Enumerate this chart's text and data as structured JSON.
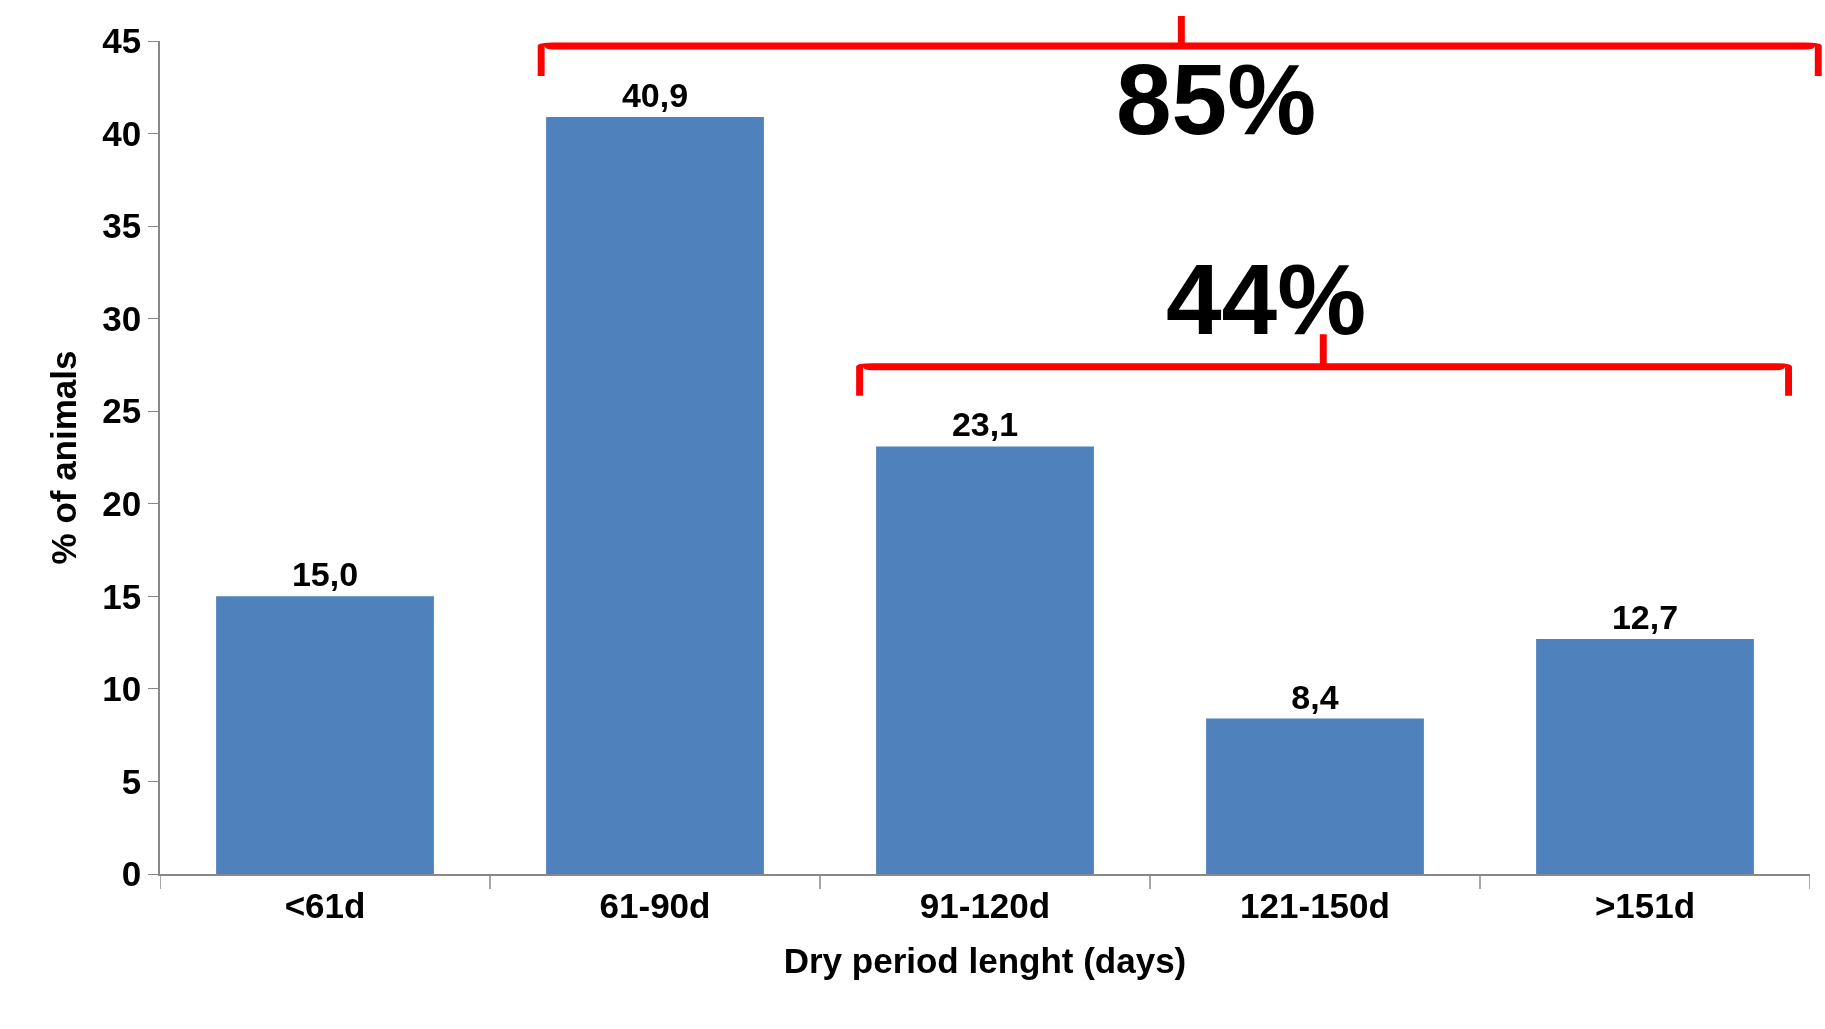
{
  "chart_data": {
    "type": "bar",
    "xlabel": "Dry period lenght (days)",
    "ylabel": "% of animals",
    "categories": [
      "<61d",
      "61-90d",
      "91-120d",
      "121-150d",
      ">151d"
    ],
    "values": [
      15.0,
      40.9,
      23.1,
      8.4,
      12.7
    ],
    "value_labels": [
      "15,0",
      "40,9",
      "23,1",
      "8,4",
      "12,7"
    ],
    "color": "#4f81bd",
    "ylim": [
      0,
      45
    ],
    "yticks": [
      0,
      5,
      10,
      15,
      20,
      25,
      30,
      35,
      40,
      45
    ],
    "legend": false,
    "annotations": [
      "85%",
      "44%"
    ]
  }
}
